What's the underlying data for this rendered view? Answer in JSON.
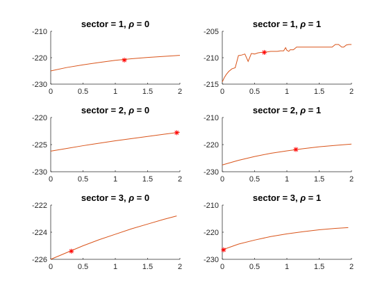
{
  "chart_data": [
    {
      "type": "line",
      "title": "sector = 1, ρ = 0",
      "title_parts": [
        "sector = 1, ",
        "ρ",
        " = 0"
      ],
      "xlim": [
        0,
        2
      ],
      "ylim": [
        -230,
        -210
      ],
      "xticks": [
        0,
        0.5,
        1,
        1.5,
        2
      ],
      "yticks": [
        -230,
        -220,
        -210
      ],
      "xlabel": "",
      "ylabel": "",
      "grid": false,
      "series": [
        {
          "x": [
            0,
            0.25,
            0.5,
            0.75,
            1,
            1.25,
            1.5,
            1.75,
            2
          ],
          "y": [
            -225,
            -223.7,
            -222.7,
            -221.8,
            -221.0,
            -220.4,
            -219.9,
            -219.5,
            -219.1
          ]
        }
      ],
      "marker": {
        "x": 1.14,
        "y": -220.9
      }
    },
    {
      "type": "line",
      "title": "sector = 1, ρ = 1",
      "title_parts": [
        "sector = 1, ",
        "ρ",
        " = 1"
      ],
      "xlim": [
        0,
        2
      ],
      "ylim": [
        -215,
        -205
      ],
      "xticks": [
        0,
        0.5,
        1,
        1.5,
        2
      ],
      "yticks": [
        -215,
        -210,
        -205
      ],
      "xlabel": "",
      "ylabel": "",
      "grid": false,
      "series": [
        {
          "x": [
            0,
            0.03,
            0.06,
            0.1,
            0.15,
            0.2,
            0.25,
            0.3,
            0.35,
            0.4,
            0.45,
            0.5,
            0.55,
            0.6,
            0.65,
            0.7,
            0.75,
            0.8,
            0.85,
            0.9,
            0.95,
            0.98,
            1.0,
            1.03,
            1.05,
            1.1,
            1.15,
            1.2,
            1.3,
            1.4,
            1.5,
            1.6,
            1.7,
            1.75,
            1.8,
            1.85,
            1.88,
            1.92,
            1.96,
            2.0
          ],
          "y": [
            -214.6,
            -213.8,
            -213.2,
            -212.6,
            -212.1,
            -211.9,
            -209.6,
            -209.5,
            -209.3,
            -210.7,
            -209.2,
            -209.3,
            -209.1,
            -209.0,
            -209.0,
            -208.9,
            -208.8,
            -208.8,
            -208.8,
            -208.7,
            -208.7,
            -208.1,
            -208.6,
            -208.8,
            -208.5,
            -208.5,
            -208.0,
            -208.0,
            -208.0,
            -208.0,
            -208.0,
            -208.0,
            -208.0,
            -207.5,
            -207.5,
            -208.0,
            -208.0,
            -207.6,
            -207.5,
            -207.5
          ]
        }
      ],
      "marker": {
        "x": 0.65,
        "y": -209.0
      }
    },
    {
      "type": "line",
      "title": "sector = 2, ρ = 0",
      "title_parts": [
        "sector = 2, ",
        "ρ",
        " = 0"
      ],
      "xlim": [
        0,
        2
      ],
      "ylim": [
        -230,
        -220
      ],
      "xticks": [
        0,
        0.5,
        1,
        1.5,
        2
      ],
      "yticks": [
        -230,
        -225,
        -220
      ],
      "xlabel": "",
      "ylabel": "",
      "grid": false,
      "series": [
        {
          "x": [
            0,
            0.25,
            0.5,
            0.75,
            1,
            1.25,
            1.5,
            1.75,
            2
          ],
          "y": [
            -226.2,
            -225.7,
            -225.2,
            -224.75,
            -224.3,
            -223.9,
            -223.5,
            -223.1,
            -222.7
          ]
        }
      ],
      "marker": {
        "x": 1.95,
        "y": -222.8
      }
    },
    {
      "type": "line",
      "title": "sector = 2, ρ = 1",
      "title_parts": [
        "sector = 2, ",
        "ρ",
        " = 1"
      ],
      "xlim": [
        0,
        2
      ],
      "ylim": [
        -230,
        -210
      ],
      "xticks": [
        0,
        0.5,
        1,
        1.5,
        2
      ],
      "yticks": [
        -230,
        -220,
        -210
      ],
      "xlabel": "",
      "ylabel": "",
      "grid": false,
      "series": [
        {
          "x": [
            0,
            0.25,
            0.5,
            0.75,
            1,
            1.25,
            1.5,
            1.75,
            2
          ],
          "y": [
            -227.5,
            -225.8,
            -224.4,
            -223.2,
            -222.3,
            -221.5,
            -220.8,
            -220.3,
            -219.8
          ]
        }
      ],
      "marker": {
        "x": 1.14,
        "y": -221.8
      }
    },
    {
      "type": "line",
      "title": "sector = 3, ρ = 0",
      "title_parts": [
        "sector = 3, ",
        "ρ",
        " = 0"
      ],
      "xlim": [
        0,
        2
      ],
      "ylim": [
        -226,
        -222
      ],
      "xticks": [
        0,
        0.5,
        1,
        1.5,
        2
      ],
      "yticks": [
        -226,
        -224,
        -222
      ],
      "xlabel": "",
      "ylabel": "",
      "grid": false,
      "series": [
        {
          "x": [
            0,
            0.25,
            0.5,
            0.75,
            1,
            1.25,
            1.5,
            1.75,
            1.95
          ],
          "y": [
            -226.0,
            -225.5,
            -225.0,
            -224.55,
            -224.15,
            -223.75,
            -223.4,
            -223.05,
            -222.8
          ]
        }
      ],
      "marker": {
        "x": 0.32,
        "y": -225.4
      }
    },
    {
      "type": "line",
      "title": "sector = 3, ρ = 1",
      "title_parts": [
        "sector = 3, ",
        "ρ",
        " = 1"
      ],
      "xlim": [
        0,
        2
      ],
      "ylim": [
        -230,
        -210
      ],
      "xticks": [
        0,
        0.5,
        1,
        1.5,
        2
      ],
      "yticks": [
        -230,
        -220,
        -210
      ],
      "xlabel": "",
      "ylabel": "",
      "grid": false,
      "series": [
        {
          "x": [
            0,
            0.25,
            0.5,
            0.75,
            1,
            1.25,
            1.5,
            1.75,
            1.95
          ],
          "y": [
            -226.5,
            -224.4,
            -222.9,
            -221.6,
            -220.6,
            -219.8,
            -219.1,
            -218.6,
            -218.3
          ]
        }
      ],
      "marker": {
        "x": 0.02,
        "y": -226.5
      }
    }
  ],
  "style": {
    "line_color": "#d95319",
    "marker_color": "#ff0000",
    "axis_color": "#262626"
  }
}
